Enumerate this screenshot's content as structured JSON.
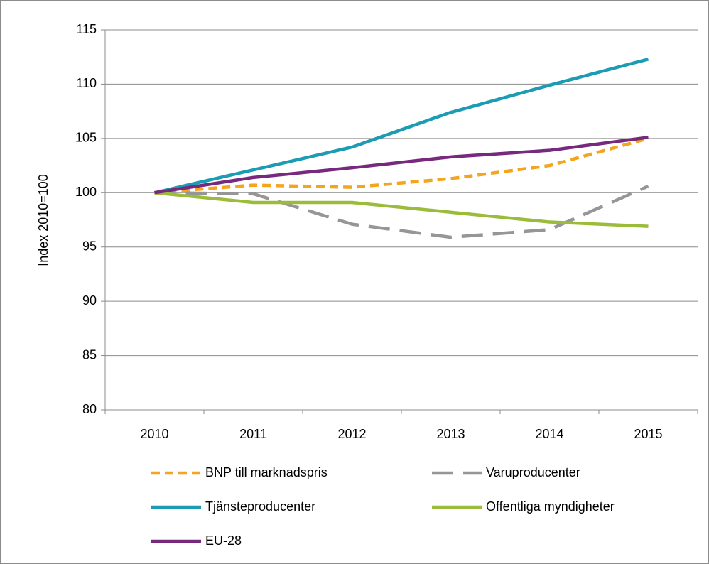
{
  "chart_data": {
    "type": "line",
    "y_label": "Index 2010=100",
    "categories": [
      "2010",
      "2011",
      "2012",
      "2013",
      "2014",
      "2015"
    ],
    "series": [
      {
        "name": "BNP till marknadspris",
        "color": "#f4a51f",
        "style": "dashed",
        "values": [
          100,
          100.7,
          100.5,
          101.3,
          102.5,
          105.0
        ]
      },
      {
        "name": "Varuproducenter",
        "color": "#969696",
        "style": "long-dash",
        "values": [
          100,
          99.9,
          97.1,
          95.9,
          96.6,
          100.6
        ]
      },
      {
        "name": "Tjänsteproducenter",
        "color": "#1b9cb4",
        "style": "solid",
        "values": [
          100,
          102.1,
          104.2,
          107.4,
          109.9,
          112.3
        ]
      },
      {
        "name": "Offentliga myndigheter",
        "color": "#9bbb3b",
        "style": "solid",
        "values": [
          100,
          99.1,
          99.1,
          98.2,
          97.3,
          96.9
        ]
      },
      {
        "name": "EU-28",
        "color": "#772a7d",
        "style": "solid",
        "values": [
          100,
          101.4,
          102.3,
          103.3,
          103.9,
          105.1
        ]
      }
    ],
    "ylim": [
      80,
      115
    ],
    "yticks": [
      80,
      85,
      90,
      95,
      100,
      105,
      110,
      115
    ],
    "grid": true,
    "legend": "bottom"
  }
}
